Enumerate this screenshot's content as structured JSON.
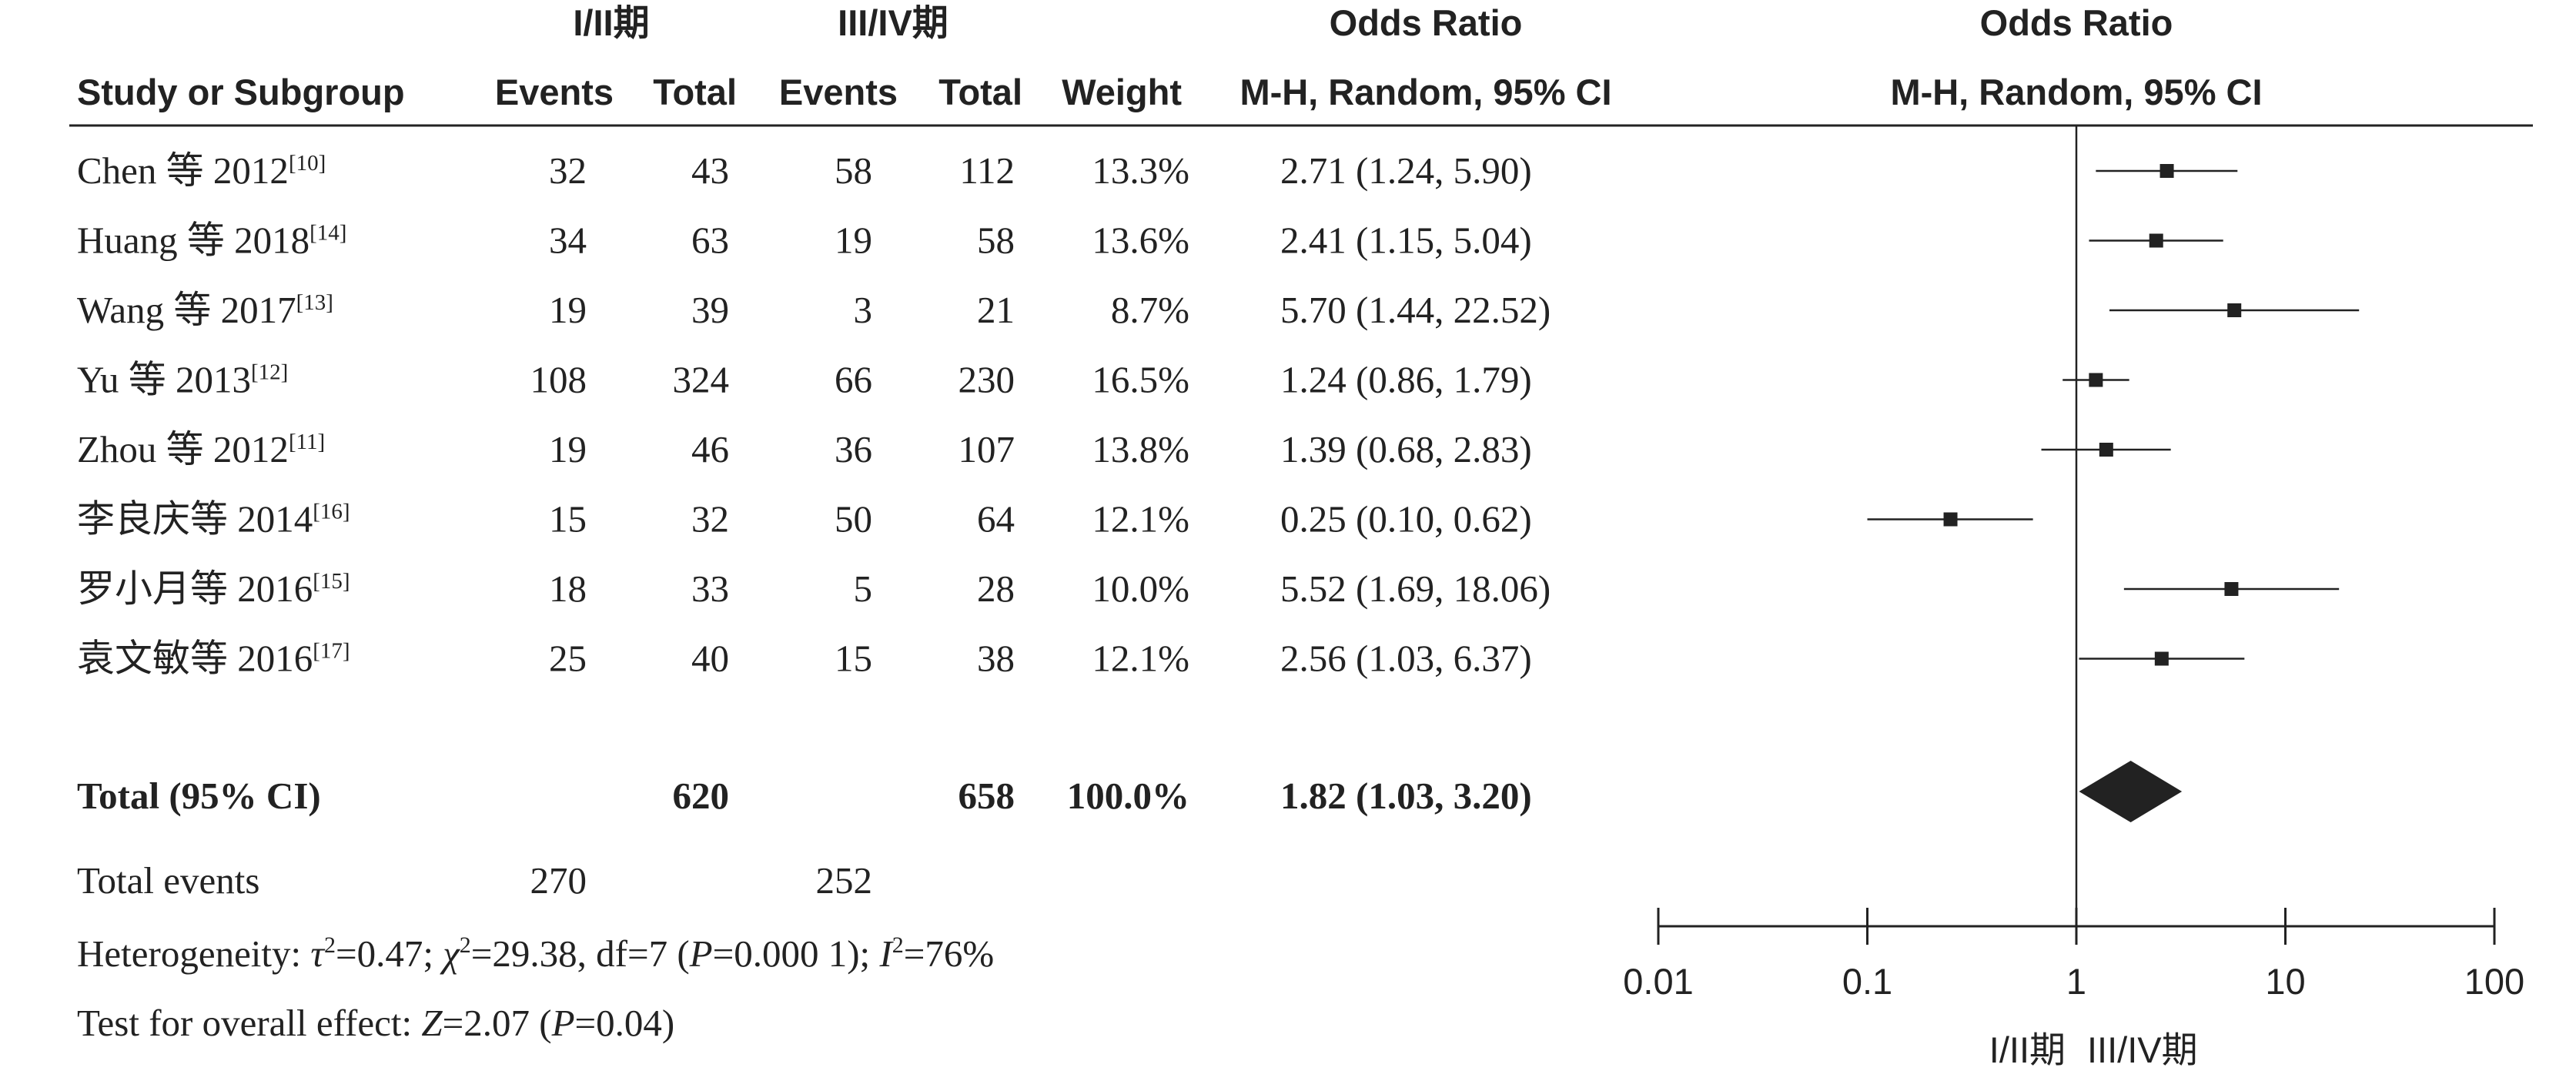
{
  "headers": {
    "group1": "I/II期",
    "group2": "III/IV期",
    "or_col_title": "Odds Ratio",
    "or_col_method": "M-H, Random, 95% CI",
    "plot_title": "Odds Ratio",
    "plot_method": "M-H, Random, 95% CI",
    "study": "Study or Subgroup",
    "events1": "Events",
    "total1": "Total",
    "events2": "Events",
    "total2": "Total",
    "weight": "Weight"
  },
  "chart_data": {
    "type": "forest",
    "x_scale": "log",
    "xlim": [
      0.01,
      100
    ],
    "x_ticks": [
      "0.01",
      "0.1",
      "1",
      "10",
      "100"
    ],
    "x_tick_values": [
      0.01,
      0.1,
      1,
      10,
      100
    ],
    "reference_line": 1,
    "studies": [
      {
        "name": "Chen 等 2012",
        "ref": "[10]",
        "events1": "32",
        "total1": "43",
        "events2": "58",
        "total2": "112",
        "weight": "13.3%",
        "or_text": "2.71 (1.24, 5.90)",
        "or": 2.71,
        "lo": 1.24,
        "hi": 5.9
      },
      {
        "name": "Huang 等 2018",
        "ref": "[14]",
        "events1": "34",
        "total1": "63",
        "events2": "19",
        "total2": "58",
        "weight": "13.6%",
        "or_text": "2.41 (1.15, 5.04)",
        "or": 2.41,
        "lo": 1.15,
        "hi": 5.04
      },
      {
        "name": "Wang 等 2017",
        "ref": "[13]",
        "events1": "19",
        "total1": "39",
        "events2": "3",
        "total2": "21",
        "weight": "8.7%",
        "or_text": "5.70 (1.44, 22.52)",
        "or": 5.7,
        "lo": 1.44,
        "hi": 22.52
      },
      {
        "name": "Yu 等 2013",
        "ref": "[12]",
        "events1": "108",
        "total1": "324",
        "events2": "66",
        "total2": "230",
        "weight": "16.5%",
        "or_text": "1.24 (0.86, 1.79)",
        "or": 1.24,
        "lo": 0.86,
        "hi": 1.79
      },
      {
        "name": "Zhou 等 2012",
        "ref": "[11]",
        "events1": "19",
        "total1": "46",
        "events2": "36",
        "total2": "107",
        "weight": "13.8%",
        "or_text": "1.39 (0.68, 2.83)",
        "or": 1.39,
        "lo": 0.68,
        "hi": 2.83
      },
      {
        "name": "李良庆等 2014",
        "ref": "[16]",
        "events1": "15",
        "total1": "32",
        "events2": "50",
        "total2": "64",
        "weight": "12.1%",
        "or_text": "0.25 (0.10, 0.62)",
        "or": 0.25,
        "lo": 0.1,
        "hi": 0.62
      },
      {
        "name": "罗小月等 2016",
        "ref": "[15]",
        "events1": "18",
        "total1": "33",
        "events2": "5",
        "total2": "28",
        "weight": "10.0%",
        "or_text": "5.52 (1.69, 18.06)",
        "or": 5.52,
        "lo": 1.69,
        "hi": 18.06
      },
      {
        "name": "袁文敏等 2016",
        "ref": "[17]",
        "events1": "25",
        "total1": "40",
        "events2": "15",
        "total2": "38",
        "weight": "12.1%",
        "or_text": "2.56 (1.03, 6.37)",
        "or": 2.56,
        "lo": 1.03,
        "hi": 6.37
      }
    ],
    "total": {
      "label": "Total (95% CI)",
      "total1": "620",
      "total2": "658",
      "weight": "100.0%",
      "or_text": "1.82 (1.03, 3.20)",
      "or": 1.82,
      "lo": 1.03,
      "hi": 3.2
    },
    "total_events": {
      "label": "Total events",
      "events1": "270",
      "events2": "252"
    },
    "heterogeneity": {
      "prefix": "Heterogeneity: ",
      "tau_sym": "τ",
      "sq": "2",
      "tau_val": "=0.47; ",
      "chi_sym": "χ",
      "chi_val": "=29.38, df=7 (",
      "p_sym": "P",
      "p_val": "=0.000 1); ",
      "i_sym": "I",
      "i_val": "=76%"
    },
    "overall": {
      "prefix": "Test for overall effect: ",
      "z_sym": "Z",
      "z_val": "=2.07 (",
      "p_sym": "P",
      "p_val": "=0.04)"
    },
    "axis_labels": {
      "left": "I/II期",
      "right": "III/IV期"
    }
  }
}
